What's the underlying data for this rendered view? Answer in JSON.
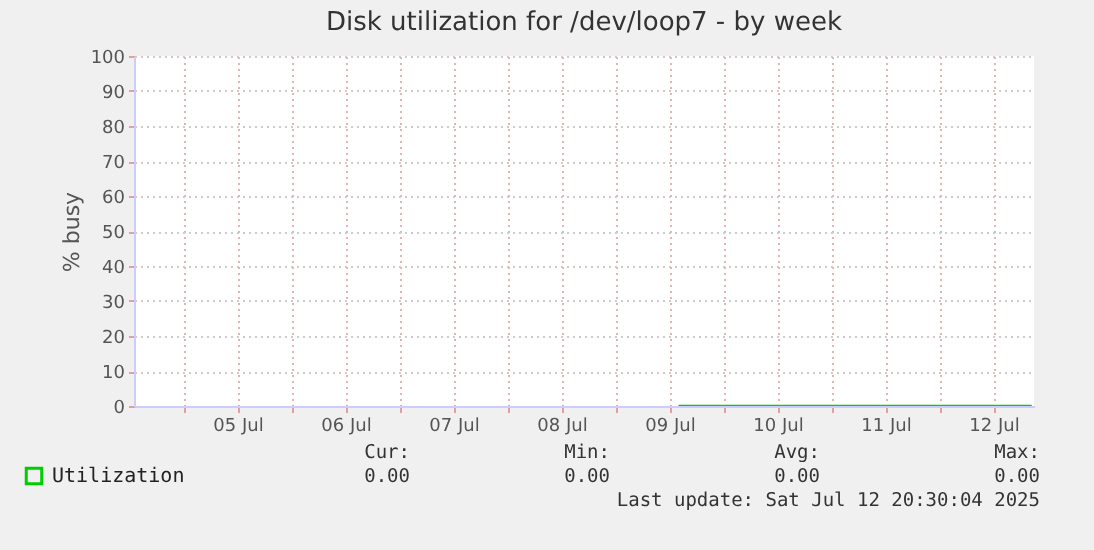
{
  "chart_data": {
    "type": "line",
    "title": "Disk utilization for /dev/loop7 - by week",
    "ylabel": "% busy",
    "x": [
      "2025-07-09T14:00",
      "2025-07-12T20:30"
    ],
    "series": [
      {
        "name": "Utilization",
        "color": "#00cc00",
        "values": [
          0,
          0
        ]
      }
    ],
    "xlim": [
      "2025-07-04T13:00",
      "2025-07-12T21:00"
    ],
    "xticks": [
      {
        "value": "2025-07-05T00:00",
        "label": null
      },
      {
        "value": "2025-07-05T12:00",
        "label": "05 Jul"
      },
      {
        "value": "2025-07-06T00:00",
        "label": null
      },
      {
        "value": "2025-07-06T12:00",
        "label": "06 Jul"
      },
      {
        "value": "2025-07-07T00:00",
        "label": null
      },
      {
        "value": "2025-07-07T12:00",
        "label": "07 Jul"
      },
      {
        "value": "2025-07-08T00:00",
        "label": null
      },
      {
        "value": "2025-07-08T12:00",
        "label": "08 Jul"
      },
      {
        "value": "2025-07-09T00:00",
        "label": null
      },
      {
        "value": "2025-07-09T12:00",
        "label": "09 Jul"
      },
      {
        "value": "2025-07-10T00:00",
        "label": null
      },
      {
        "value": "2025-07-10T12:00",
        "label": "10 Jul"
      },
      {
        "value": "2025-07-11T00:00",
        "label": null
      },
      {
        "value": "2025-07-11T12:00",
        "label": "11 Jul"
      },
      {
        "value": "2025-07-12T00:00",
        "label": null
      },
      {
        "value": "2025-07-12T12:00",
        "label": "12 Jul"
      }
    ],
    "ylim": [
      0,
      100
    ],
    "yticks": [
      0,
      10,
      20,
      30,
      40,
      50,
      60,
      70,
      80,
      90,
      100
    ],
    "grid": true,
    "legend": "bottom left",
    "annotations": [
      "Cur:",
      "Min:",
      "Avg:",
      "Max:",
      "0.00",
      "0.00",
      "0.00",
      "0.00",
      "Last update: Sat Jul 12 20:30:04 2025"
    ]
  }
}
